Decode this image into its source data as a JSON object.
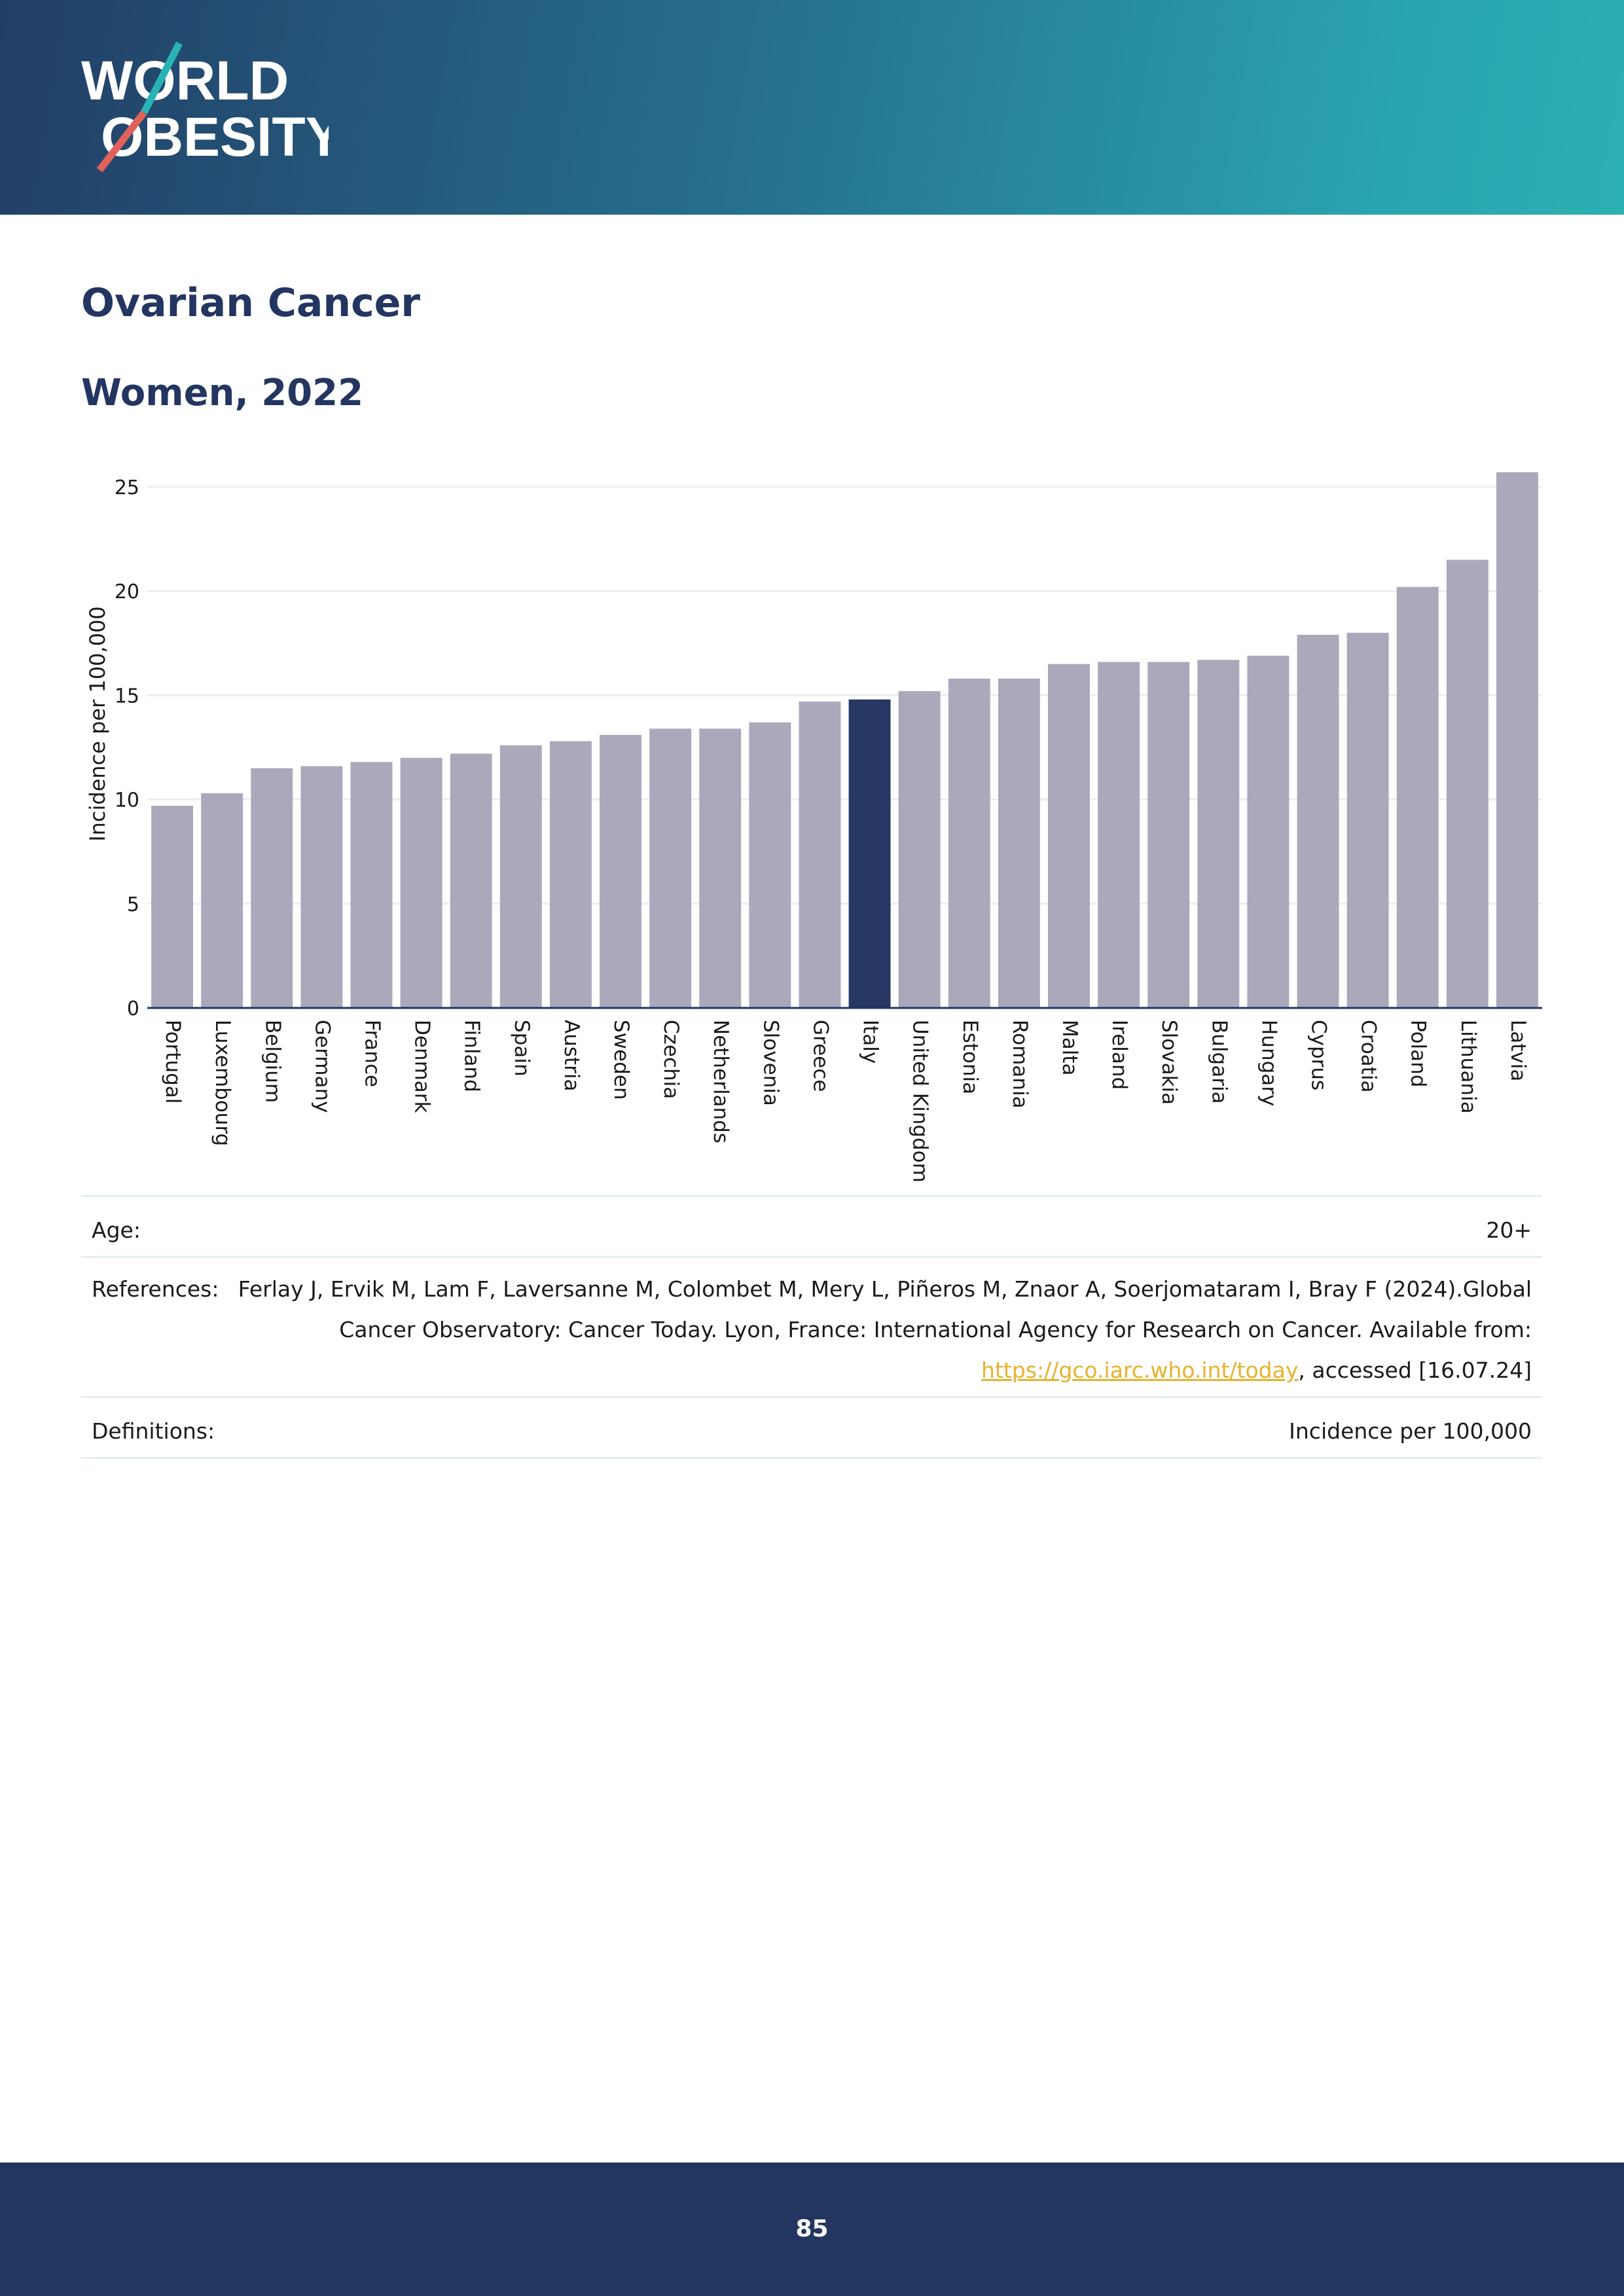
{
  "brand": {
    "line1": "WORLD",
    "line2": "OBESITY"
  },
  "page": {
    "title": "Ovarian Cancer",
    "subtitle": "Women, 2022",
    "number": "85"
  },
  "colors": {
    "header_dark": "#223e66",
    "header_teal": "#2bb0b3",
    "navy": "#233561",
    "bar_default": "#aca8bb",
    "bar_highlight": "#263764",
    "link": "#e7b22d"
  },
  "chart_data": {
    "type": "bar",
    "title": "Women, 2022",
    "ylabel": "Incidence per 100,000",
    "xlabel": "",
    "ylim": [
      0,
      26
    ],
    "yticks": [
      0,
      5,
      10,
      15,
      20,
      25
    ],
    "grid": true,
    "highlight": "Italy",
    "categories": [
      "Portugal",
      "Luxembourg",
      "Belgium",
      "Germany",
      "France",
      "Denmark",
      "Finland",
      "Spain",
      "Austria",
      "Sweden",
      "Czechia",
      "Netherlands",
      "Slovenia",
      "Greece",
      "Italy",
      "United Kingdom",
      "Estonia",
      "Romania",
      "Malta",
      "Ireland",
      "Slovakia",
      "Bulgaria",
      "Hungary",
      "Cyprus",
      "Croatia",
      "Poland",
      "Lithuania",
      "Latvia"
    ],
    "values": [
      9.7,
      10.3,
      11.5,
      11.6,
      11.8,
      12.0,
      12.2,
      12.6,
      12.8,
      13.1,
      13.4,
      13.4,
      13.7,
      14.7,
      14.8,
      15.2,
      15.8,
      15.8,
      16.5,
      16.6,
      16.6,
      16.7,
      16.9,
      17.9,
      18.0,
      20.2,
      21.5,
      25.7
    ]
  },
  "info": {
    "age_label": "Age:",
    "age_value": "20+",
    "references_label": "References:",
    "references_line1": "Ferlay J, Ervik M, Lam F, Laversanne M, Colombet M, Mery L, Piñeros M, Znaor A, Soerjomataram I, Bray F (2024).Global",
    "references_line2": "Cancer Observatory: Cancer Today. Lyon, France: International Agency for Research on Cancer. Available from:",
    "references_link": "https://gco.iarc.who.int/today",
    "references_suffix": ", accessed [16.07.24]",
    "definitions_label": "Definitions:",
    "definitions_value": "Incidence per 100,000"
  }
}
